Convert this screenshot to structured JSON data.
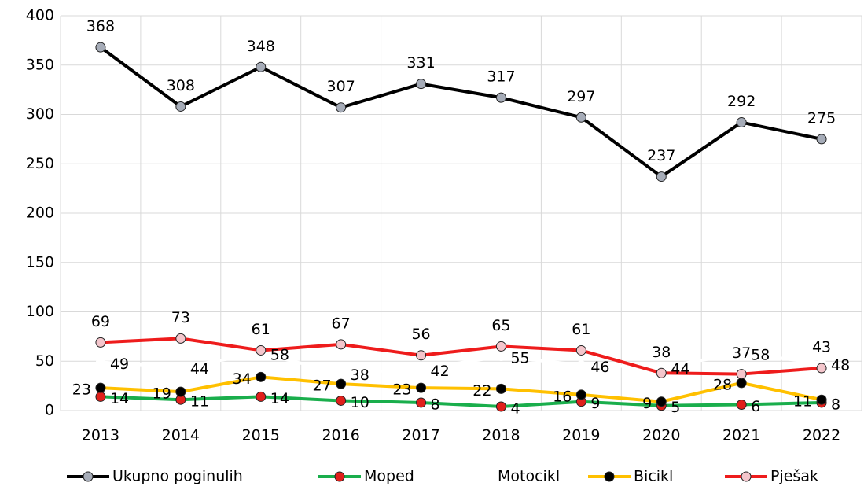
{
  "chart_data": {
    "type": "line",
    "categories": [
      "2013",
      "2014",
      "2015",
      "2016",
      "2017",
      "2018",
      "2019",
      "2020",
      "2021",
      "2022"
    ],
    "series": [
      {
        "name": "Ukupno poginulih",
        "color": "#000000",
        "marker_color": "#a6acb8",
        "label_position": "top",
        "values": [
          368,
          308,
          348,
          307,
          331,
          317,
          297,
          237,
          292,
          275
        ]
      },
      {
        "name": "Moped",
        "color": "#1aae4c",
        "marker_color": "#e0201b",
        "label_position": "right",
        "values": [
          14,
          11,
          14,
          10,
          8,
          4,
          9,
          5,
          6,
          8
        ]
      },
      {
        "name": "Motocikl",
        "color": "#ffffff",
        "marker_color": "#ffffff",
        "label_position": "right",
        "values": [
          49,
          44,
          58,
          38,
          42,
          55,
          46,
          44,
          58,
          48
        ]
      },
      {
        "name": "Bicikl",
        "color": "#ffc000",
        "marker_color": "#000000",
        "label_position": "left",
        "values": [
          23,
          19,
          34,
          27,
          23,
          22,
          16,
          9,
          28,
          11
        ]
      },
      {
        "name": "Pješak",
        "color": "#ee1c1c",
        "marker_color": "#f4c6cc",
        "label_position": "top",
        "values": [
          69,
          73,
          61,
          67,
          56,
          65,
          61,
          38,
          37,
          43
        ]
      }
    ],
    "ylim": [
      0,
      400
    ],
    "yticks": [
      0,
      50,
      100,
      150,
      200,
      250,
      300,
      350,
      400
    ],
    "grid": true,
    "legend": "bottom"
  }
}
